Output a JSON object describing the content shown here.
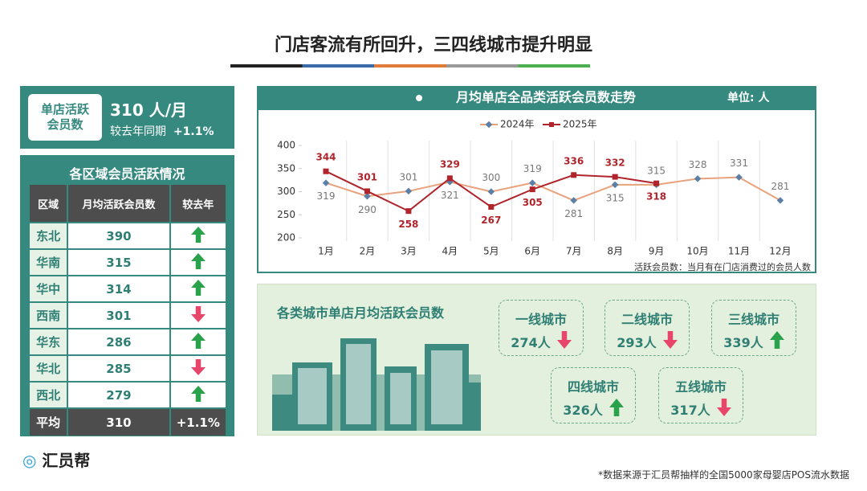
{
  "title": "门店客流有所回升，三四线城市提升明显",
  "summary": {
    "label": "单店活跃会员数",
    "value": "310 人/月",
    "compare_label": "较去年同期",
    "change": "+1.1%"
  },
  "regions": {
    "title": "各区域会员活跃情况",
    "headers": [
      "区域",
      "月均活跃会员数",
      "较去年"
    ],
    "rows": [
      {
        "region": "东北",
        "value": 390,
        "trend": "up"
      },
      {
        "region": "华南",
        "value": 315,
        "trend": "up"
      },
      {
        "region": "华中",
        "value": 314,
        "trend": "up"
      },
      {
        "region": "西南",
        "value": 301,
        "trend": "down"
      },
      {
        "region": "华东",
        "value": 286,
        "trend": "up"
      },
      {
        "region": "华北",
        "value": 285,
        "trend": "down"
      },
      {
        "region": "西北",
        "value": 279,
        "trend": "up"
      }
    ],
    "average": {
      "label": "平均",
      "value": 310,
      "change": "+1.1%"
    }
  },
  "chart_data": {
    "type": "line",
    "title": "月均单店全品类活跃会员数走势",
    "unit": "单位: 人",
    "categories": [
      "1月",
      "2月",
      "3月",
      "4月",
      "5月",
      "6月",
      "7月",
      "8月",
      "9月",
      "10月",
      "11月",
      "12月"
    ],
    "series": [
      {
        "name": "2024年",
        "color": "#e8a27c",
        "marker_color": "#5b7fa6",
        "values": [
          319,
          290,
          301,
          321,
          300,
          319,
          281,
          315,
          315,
          328,
          331,
          281
        ]
      },
      {
        "name": "2025年",
        "color": "#b0242b",
        "marker_color": "#b0242b",
        "values": [
          344,
          301,
          258,
          329,
          267,
          305,
          336,
          332,
          318,
          null,
          null,
          null
        ]
      }
    ],
    "ylim": [
      200,
      400
    ],
    "yticks": [
      200,
      250,
      300,
      350,
      400
    ],
    "note": "活跃会员数：当月有在门店消费过的会员人数"
  },
  "cities": {
    "title": "各类城市单店月均活跃会员数",
    "items": [
      {
        "name": "一线城市",
        "value": "274人",
        "trend": "down"
      },
      {
        "name": "二线城市",
        "value": "293人",
        "trend": "down"
      },
      {
        "name": "三线城市",
        "value": "339人",
        "trend": "up"
      },
      {
        "name": "四线城市",
        "value": "326人",
        "trend": "up"
      },
      {
        "name": "五线城市",
        "value": "317人",
        "trend": "down"
      }
    ]
  },
  "footer": {
    "logo": "汇员帮",
    "source": "*数据来源于汇员帮抽样的全国5000家母婴店POS流水数据"
  }
}
